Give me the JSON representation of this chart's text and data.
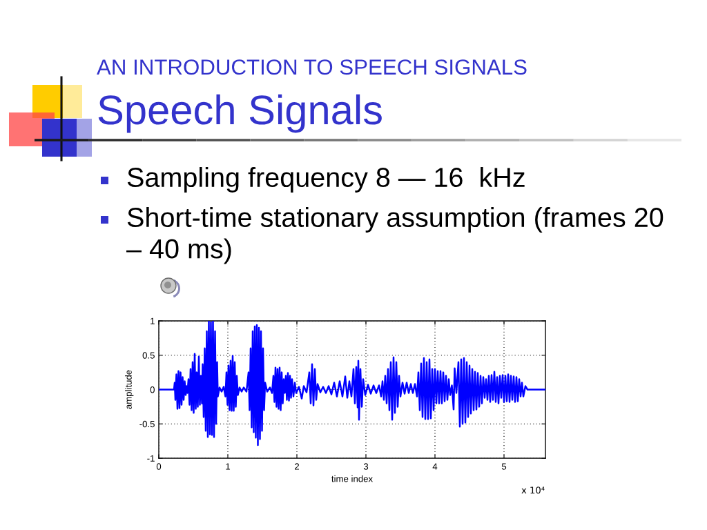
{
  "chart_data": {
    "type": "line",
    "subtitle": "AN INTRODUCTION TO SPEECH SIGNALS",
    "title": "Speech Signals",
    "annotations": [
      "Sampling frequency 8 — 16  kHz",
      "Short-time stationary assumption (frames 20 – 40 ms)",
      "x 10⁴"
    ],
    "xlabel": "time index",
    "ylabel": "amplitude",
    "x": [
      0,
      0.22,
      0.23,
      0.24,
      0.255,
      0.27,
      0.285,
      0.3,
      0.315,
      0.33,
      0.345,
      0.36,
      0.375,
      0.39,
      0.4,
      0.415,
      0.43,
      0.445,
      0.46,
      0.475,
      0.49,
      0.505,
      0.52,
      0.535,
      0.55,
      0.565,
      0.58,
      0.595,
      0.61,
      0.625,
      0.635,
      0.65,
      0.665,
      0.68,
      0.695,
      0.71,
      0.725,
      0.74,
      0.755,
      0.77,
      0.785,
      0.8,
      0.815,
      0.83,
      0.845,
      0.855,
      0.88,
      0.91,
      0.94,
      0.965,
      0.98,
      0.995,
      1.01,
      1.025,
      1.04,
      1.055,
      1.07,
      1.085,
      1.1,
      1.115,
      1.13,
      1.145,
      1.17,
      1.2,
      1.23,
      1.27,
      1.3,
      1.315,
      1.33,
      1.345,
      1.36,
      1.375,
      1.39,
      1.405,
      1.42,
      1.435,
      1.45,
      1.465,
      1.48,
      1.495,
      1.51,
      1.525,
      1.54,
      1.57,
      1.61,
      1.64,
      1.66,
      1.675,
      1.69,
      1.705,
      1.72,
      1.735,
      1.75,
      1.765,
      1.78,
      1.795,
      1.81,
      1.825,
      1.84,
      1.855,
      1.87,
      1.885,
      1.9,
      1.915,
      1.93,
      1.95,
      1.97,
      1.99,
      2.03,
      2.07,
      2.1,
      2.14,
      2.18,
      2.2,
      2.22,
      2.24,
      2.26,
      2.28,
      2.3,
      2.34,
      2.38,
      2.42,
      2.46,
      2.5,
      2.54,
      2.58,
      2.62,
      2.66,
      2.7,
      2.73,
      2.76,
      2.79,
      2.82,
      2.84,
      2.86,
      2.88,
      2.89,
      2.9,
      2.92,
      2.94,
      2.96,
      2.99,
      3.03,
      3.07,
      3.11,
      3.15,
      3.19,
      3.22,
      3.24,
      3.26,
      3.28,
      3.3,
      3.32,
      3.34,
      3.36,
      3.38,
      3.4,
      3.42,
      3.44,
      3.46,
      3.48,
      3.5,
      3.53,
      3.56,
      3.59,
      3.62,
      3.65,
      3.68,
      3.71,
      3.74,
      3.76,
      3.78,
      3.8,
      3.82,
      3.84,
      3.86,
      3.88,
      3.9,
      3.92,
      3.94,
      3.96,
      3.98,
      4.0,
      4.02,
      4.04,
      4.06,
      4.08,
      4.1,
      4.12,
      4.14,
      4.16,
      4.18,
      4.2,
      4.22,
      4.245,
      4.27,
      4.285,
      4.31,
      4.34,
      4.36,
      4.38,
      4.4,
      4.42,
      4.44,
      4.46,
      4.48,
      4.5,
      4.52,
      4.54,
      4.56,
      4.58,
      4.6,
      4.62,
      4.64,
      4.66,
      4.68,
      4.7,
      4.72,
      4.74,
      4.76,
      4.78,
      4.8,
      4.82,
      4.84,
      4.86,
      4.88,
      4.9,
      4.92,
      4.94,
      4.96,
      4.98,
      5.0,
      5.02,
      5.04,
      5.06,
      5.08,
      5.1,
      5.12,
      5.14,
      5.16,
      5.18,
      5.2,
      5.22,
      5.24,
      5.26,
      5.28,
      5.31,
      5.34,
      5.6
    ],
    "series": [
      {
        "color": "#0000ff",
        "values": [
          0,
          0,
          0.1,
          -0.15,
          0.22,
          -0.28,
          0.27,
          -0.27,
          0.25,
          -0.22,
          0.18,
          -0.15,
          0.12,
          -0.08,
          0.05,
          -0.05,
          0.15,
          -0.22,
          0.3,
          -0.3,
          0.4,
          -0.34,
          0.52,
          -0.28,
          0.25,
          -0.25,
          0.48,
          -0.22,
          0.2,
          -0.2,
          0.37,
          -0.4,
          0.6,
          -0.6,
          0.85,
          -0.69,
          1.0,
          -0.65,
          0.98,
          -0.66,
          1.0,
          -0.69,
          0.85,
          -0.5,
          0.4,
          -0.1,
          0.03,
          -0.03,
          0.04,
          -0.1,
          0.25,
          -0.22,
          0.35,
          -0.3,
          0.42,
          -0.31,
          0.49,
          -0.31,
          0.4,
          -0.25,
          0.2,
          -0.08,
          0.03,
          -0.03,
          0.03,
          -0.03,
          0.25,
          -0.3,
          0.6,
          -0.55,
          0.85,
          -0.62,
          0.92,
          -0.7,
          0.94,
          -0.81,
          0.9,
          -0.72,
          0.85,
          -0.6,
          0.6,
          -0.3,
          0.1,
          -0.03,
          0.03,
          -0.05,
          0.2,
          -0.18,
          0.32,
          -0.25,
          0.3,
          -0.28,
          0.32,
          -0.3,
          0.25,
          -0.2,
          0.15,
          -0.05,
          0.2,
          -0.15,
          0.24,
          -0.16,
          0.2,
          -0.12,
          0.15,
          -0.1,
          0.1,
          -0.05,
          0.04,
          -0.13,
          0.05,
          -0.04,
          0.25,
          -0.2,
          0.37,
          -0.23,
          0.3,
          -0.15,
          0.08,
          -0.04,
          0.04,
          -0.05,
          0.05,
          -0.07,
          0.1,
          -0.1,
          0.12,
          -0.1,
          0.19,
          -0.12,
          0.12,
          -0.1,
          0.3,
          -0.2,
          0.33,
          -0.26,
          0.42,
          -0.44,
          0.3,
          -0.25,
          0.15,
          -0.08,
          0.07,
          -0.06,
          0.06,
          -0.05,
          0.06,
          -0.1,
          0.12,
          -0.15,
          0.2,
          -0.2,
          0.3,
          -0.3,
          0.4,
          -0.44,
          0.47,
          -0.34,
          0.4,
          -0.25,
          0.2,
          -0.1,
          0.1,
          -0.06,
          0.1,
          -0.05,
          0.08,
          -0.05,
          0.08,
          -0.1,
          0.25,
          -0.3,
          0.38,
          -0.4,
          0.46,
          -0.43,
          0.4,
          -0.43,
          0.44,
          -0.42,
          0.3,
          -0.3,
          0.3,
          -0.2,
          0.27,
          -0.2,
          0.27,
          -0.2,
          0.25,
          -0.17,
          0.2,
          -0.15,
          0.15,
          -0.08,
          0.06,
          -0.29,
          0.31,
          -0.05,
          0.4,
          -0.54,
          0.44,
          -0.5,
          0.46,
          -0.48,
          0.4,
          -0.4,
          0.35,
          -0.35,
          0.3,
          -0.3,
          0.26,
          -0.29,
          0.24,
          -0.25,
          0.2,
          -0.2,
          0.18,
          -0.12,
          0.15,
          -0.15,
          0.2,
          -0.18,
          0.21,
          -0.15,
          0.26,
          -0.18,
          0.18,
          -0.2,
          0.2,
          -0.12,
          0.21,
          -0.18,
          0.2,
          -0.17,
          0.22,
          -0.18,
          0.2,
          -0.15,
          0.19,
          -0.18,
          0.18,
          -0.17,
          0.15,
          -0.1,
          0.1,
          -0.1,
          0.05,
          0,
          0
        ]
      }
    ],
    "xlim": [
      0,
      5.6
    ],
    "ylim": [
      -1,
      1
    ],
    "xticks": [
      0,
      1,
      2,
      3,
      4,
      5
    ],
    "yticks": [
      -1,
      -0.5,
      0,
      0.5,
      1
    ],
    "grid": true,
    "line_style": "solid"
  }
}
